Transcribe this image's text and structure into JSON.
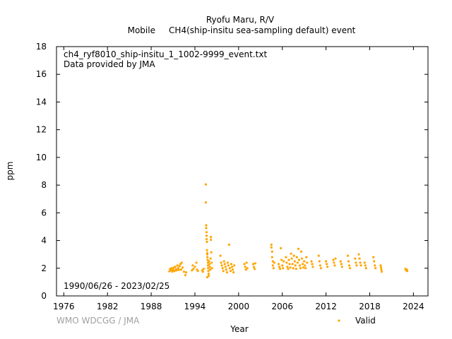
{
  "chart_data": {
    "type": "scatter",
    "title": "Ryofu Maru, R/V",
    "subtitle": "Mobile     CH4(ship-insitu sea-sampling default) event",
    "xlabel": "Year",
    "ylabel": "ppm",
    "xlim": [
      1975,
      2026
    ],
    "ylim": [
      0,
      18
    ],
    "x_ticks": [
      1976,
      1982,
      1988,
      1994,
      2000,
      2006,
      2012,
      2018,
      2024
    ],
    "y_ticks": [
      0,
      2,
      4,
      6,
      8,
      10,
      12,
      14,
      16,
      18
    ],
    "file_note": "ch4_ryf8010_ship-insitu_1_1002-9999_event.txt",
    "provider_note": "Data provided by JMA",
    "date_range": "1990/06/26 - 2023/02/25",
    "credit": "WMO WDCGG / JMA",
    "legend": "bottom-right",
    "series": [
      {
        "name": "Valid",
        "color": "#ffa500",
        "points": [
          [
            1990.5,
            1.78
          ],
          [
            1990.6,
            1.95
          ],
          [
            1990.7,
            1.85
          ],
          [
            1990.8,
            2.0
          ],
          [
            1990.9,
            1.75
          ],
          [
            1991.0,
            1.9
          ],
          [
            1991.1,
            2.05
          ],
          [
            1991.2,
            1.8
          ],
          [
            1991.3,
            2.1
          ],
          [
            1991.4,
            1.92
          ],
          [
            1991.5,
            1.85
          ],
          [
            1991.6,
            2.2
          ],
          [
            1991.7,
            2.0
          ],
          [
            1991.8,
            1.88
          ],
          [
            1991.9,
            2.15
          ],
          [
            1992.0,
            2.3
          ],
          [
            1992.1,
            1.9
          ],
          [
            1992.2,
            2.4
          ],
          [
            1992.3,
            2.05
          ],
          [
            1992.5,
            1.75
          ],
          [
            1992.7,
            1.5
          ],
          [
            1992.8,
            1.7
          ],
          [
            1993.6,
            1.85
          ],
          [
            1993.7,
            2.2
          ],
          [
            1993.8,
            1.95
          ],
          [
            1994.0,
            2.1
          ],
          [
            1994.2,
            2.4
          ],
          [
            1994.3,
            1.9
          ],
          [
            1994.4,
            1.8
          ],
          [
            1995.0,
            1.85
          ],
          [
            1995.1,
            1.75
          ],
          [
            1995.2,
            1.95
          ],
          [
            1995.5,
            8.05
          ],
          [
            1995.5,
            6.75
          ],
          [
            1995.55,
            5.1
          ],
          [
            1995.55,
            4.9
          ],
          [
            1995.6,
            4.6
          ],
          [
            1995.6,
            4.35
          ],
          [
            1995.6,
            4.1
          ],
          [
            1995.65,
            3.9
          ],
          [
            1995.65,
            3.3
          ],
          [
            1995.7,
            3.1
          ],
          [
            1995.7,
            3.0
          ],
          [
            1995.72,
            2.8
          ],
          [
            1995.75,
            2.6
          ],
          [
            1995.78,
            2.4
          ],
          [
            1995.8,
            2.2
          ],
          [
            1995.82,
            2.0
          ],
          [
            1995.85,
            1.8
          ],
          [
            1995.88,
            1.6
          ],
          [
            1995.9,
            1.45
          ],
          [
            1995.7,
            1.35
          ],
          [
            1995.95,
            2.5
          ],
          [
            1996.0,
            2.3
          ],
          [
            1996.05,
            2.1
          ],
          [
            1996.1,
            1.9
          ],
          [
            1996.15,
            2.7
          ],
          [
            1996.2,
            4.25
          ],
          [
            1996.2,
            4.05
          ],
          [
            1996.25,
            3.15
          ],
          [
            1996.3,
            2.4
          ],
          [
            1996.35,
            2.0
          ],
          [
            1997.5,
            2.9
          ],
          [
            1997.6,
            2.4
          ],
          [
            1997.7,
            2.2
          ],
          [
            1997.8,
            2.0
          ],
          [
            1997.9,
            1.8
          ],
          [
            1998.0,
            2.5
          ],
          [
            1998.1,
            2.3
          ],
          [
            1998.2,
            2.1
          ],
          [
            1998.3,
            1.9
          ],
          [
            1998.4,
            1.7
          ],
          [
            1998.5,
            2.4
          ],
          [
            1998.6,
            2.2
          ],
          [
            1998.7,
            3.7
          ],
          [
            1998.8,
            2.0
          ],
          [
            1998.9,
            1.8
          ],
          [
            1999.0,
            2.3
          ],
          [
            1999.1,
            2.1
          ],
          [
            1999.2,
            1.9
          ],
          [
            1999.3,
            1.7
          ],
          [
            1999.4,
            2.2
          ],
          [
            2000.8,
            2.3
          ],
          [
            2000.9,
            2.1
          ],
          [
            2001.0,
            1.9
          ],
          [
            2001.1,
            2.4
          ],
          [
            2001.2,
            2.0
          ],
          [
            2002.0,
            2.3
          ],
          [
            2002.1,
            2.1
          ],
          [
            2002.2,
            1.95
          ],
          [
            2002.3,
            2.35
          ],
          [
            2004.5,
            3.7
          ],
          [
            2004.5,
            3.5
          ],
          [
            2004.6,
            3.2
          ],
          [
            2004.6,
            2.8
          ],
          [
            2004.7,
            2.5
          ],
          [
            2004.7,
            2.2
          ],
          [
            2004.8,
            2.0
          ],
          [
            2004.9,
            2.4
          ],
          [
            2005.5,
            2.3
          ],
          [
            2005.6,
            2.1
          ],
          [
            2005.7,
            1.95
          ],
          [
            2005.8,
            3.45
          ],
          [
            2005.9,
            2.6
          ],
          [
            2006.0,
            2.2
          ],
          [
            2006.1,
            2.0
          ],
          [
            2006.2,
            2.5
          ],
          [
            2006.5,
            2.8
          ],
          [
            2006.6,
            2.4
          ],
          [
            2006.7,
            2.1
          ],
          [
            2006.8,
            1.95
          ],
          [
            2006.9,
            2.6
          ],
          [
            2007.0,
            2.3
          ],
          [
            2007.1,
            2.05
          ],
          [
            2007.2,
            3.05
          ],
          [
            2007.3,
            2.7
          ],
          [
            2007.4,
            2.3
          ],
          [
            2007.5,
            2.0
          ],
          [
            2007.6,
            2.9
          ],
          [
            2007.7,
            2.5
          ],
          [
            2007.8,
            2.2
          ],
          [
            2007.9,
            1.95
          ],
          [
            2008.0,
            2.8
          ],
          [
            2008.1,
            2.4
          ],
          [
            2008.2,
            3.4
          ],
          [
            2008.3,
            2.6
          ],
          [
            2008.4,
            2.2
          ],
          [
            2008.5,
            2.0
          ],
          [
            2008.6,
            3.2
          ],
          [
            2008.7,
            2.7
          ],
          [
            2008.8,
            2.3
          ],
          [
            2008.9,
            2.05
          ],
          [
            2009.0,
            2.5
          ],
          [
            2009.1,
            2.2
          ],
          [
            2009.2,
            2.0
          ],
          [
            2009.3,
            2.8
          ],
          [
            2009.4,
            2.4
          ],
          [
            2010.0,
            2.5
          ],
          [
            2010.1,
            2.3
          ],
          [
            2010.2,
            2.1
          ],
          [
            2011.0,
            2.9
          ],
          [
            2011.1,
            2.5
          ],
          [
            2011.2,
            2.2
          ],
          [
            2011.3,
            2.0
          ],
          [
            2012.0,
            2.5
          ],
          [
            2012.1,
            2.3
          ],
          [
            2012.2,
            2.1
          ],
          [
            2013.0,
            2.6
          ],
          [
            2013.1,
            2.4
          ],
          [
            2013.2,
            2.2
          ],
          [
            2013.3,
            2.7
          ],
          [
            2014.0,
            2.5
          ],
          [
            2014.1,
            2.3
          ],
          [
            2014.2,
            2.1
          ],
          [
            2015.0,
            2.9
          ],
          [
            2015.1,
            2.5
          ],
          [
            2015.2,
            2.2
          ],
          [
            2015.3,
            2.0
          ],
          [
            2016.0,
            2.7
          ],
          [
            2016.1,
            2.4
          ],
          [
            2016.2,
            2.2
          ],
          [
            2016.5,
            3.0
          ],
          [
            2016.6,
            2.7
          ],
          [
            2016.7,
            2.4
          ],
          [
            2016.8,
            2.2
          ],
          [
            2017.3,
            2.4
          ],
          [
            2017.4,
            2.2
          ],
          [
            2017.5,
            2.0
          ],
          [
            2018.5,
            2.8
          ],
          [
            2018.6,
            2.5
          ],
          [
            2018.7,
            2.2
          ],
          [
            2018.8,
            2.0
          ],
          [
            2019.5,
            2.2
          ],
          [
            2019.55,
            2.05
          ],
          [
            2019.6,
            1.9
          ],
          [
            2019.65,
            1.75
          ],
          [
            2022.9,
            1.95
          ],
          [
            2023.0,
            1.85
          ],
          [
            2023.1,
            1.9
          ],
          [
            2023.15,
            1.8
          ]
        ]
      }
    ]
  }
}
